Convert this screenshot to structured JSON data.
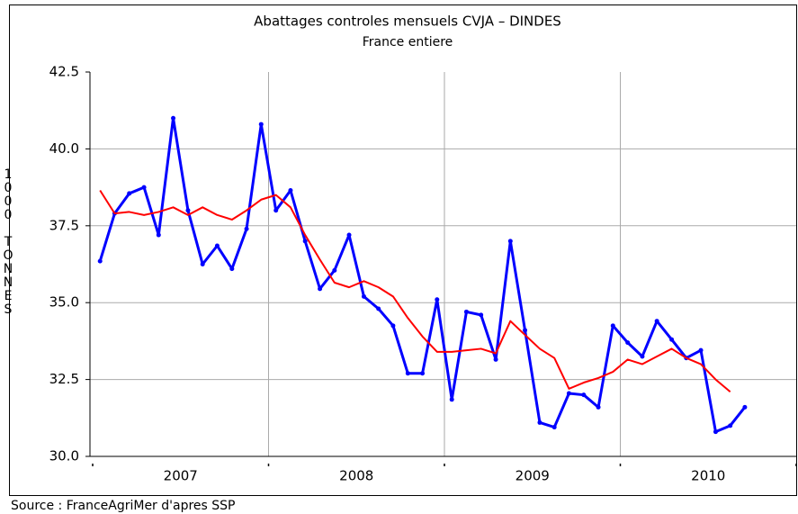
{
  "chart_data": {
    "type": "line",
    "title": "Abattages controles mensuels CVJA – DINDES",
    "subtitle": "France entiere",
    "y_label": "1000 TONNES",
    "source": "Source : FranceAgriMer d'apres SSP",
    "x": [
      2007.042,
      2007.125,
      2007.208,
      2007.292,
      2007.375,
      2007.458,
      2007.542,
      2007.625,
      2007.708,
      2007.792,
      2007.875,
      2007.958,
      2008.042,
      2008.125,
      2008.208,
      2008.292,
      2008.375,
      2008.458,
      2008.542,
      2008.625,
      2008.708,
      2008.792,
      2008.875,
      2008.958,
      2009.042,
      2009.125,
      2009.208,
      2009.292,
      2009.375,
      2009.458,
      2009.542,
      2009.625,
      2009.708,
      2009.792,
      2009.875,
      2009.958,
      2010.042,
      2010.125,
      2010.208,
      2010.292,
      2010.375,
      2010.458,
      2010.542,
      2010.625,
      2010.708
    ],
    "series": [
      {
        "color": "#0000ff",
        "width": 3,
        "markers": true,
        "values": [
          36.35,
          37.9,
          38.55,
          38.75,
          37.2,
          41.0,
          38.0,
          36.25,
          36.85,
          36.1,
          37.4,
          40.8,
          38.0,
          38.65,
          37.0,
          35.45,
          36.05,
          37.2,
          35.2,
          34.8,
          34.25,
          32.7,
          32.7,
          35.1,
          31.85,
          34.7,
          34.6,
          33.15,
          37.0,
          34.1,
          31.1,
          30.95,
          32.05,
          32.0,
          31.6,
          34.25,
          33.7,
          33.25,
          34.4,
          33.8,
          33.2,
          33.45,
          30.8,
          31.0,
          31.6
        ]
      },
      {
        "color": "#ff0000",
        "width": 2,
        "markers": false,
        "values": [
          38.65,
          37.9,
          37.95,
          37.85,
          37.95,
          38.1,
          37.85,
          38.1,
          37.85,
          37.7,
          38.0,
          38.35,
          38.5,
          38.1,
          37.2,
          36.4,
          35.65,
          35.5,
          35.7,
          35.5,
          35.2,
          34.5,
          33.9,
          33.4,
          33.4,
          33.45,
          33.5,
          33.35,
          34.4,
          33.95,
          33.5,
          33.2,
          32.2,
          32.4,
          32.55,
          32.75,
          33.15,
          33.0,
          33.25,
          33.5,
          33.2,
          33.0,
          32.5,
          32.1,
          null
        ]
      }
    ],
    "xlim": [
      2007,
      2011
    ],
    "xticks": [
      {
        "value": 2007.5,
        "label": "2007"
      },
      {
        "value": 2008.5,
        "label": "2008"
      },
      {
        "value": 2009.5,
        "label": "2009"
      },
      {
        "value": 2010.5,
        "label": "2010"
      }
    ],
    "xgrid": [
      2008,
      2009,
      2010
    ],
    "xdots": [
      2007,
      2008,
      2009,
      2010,
      2011
    ],
    "ylim": [
      30,
      42.5
    ],
    "yticks": [
      {
        "value": 30,
        "label": "30.0"
      },
      32.5,
      {
        "value": 35,
        "label": "35.0"
      },
      37.5,
      {
        "value": 40,
        "label": "40.0"
      },
      42.5
    ],
    "grid": true
  }
}
